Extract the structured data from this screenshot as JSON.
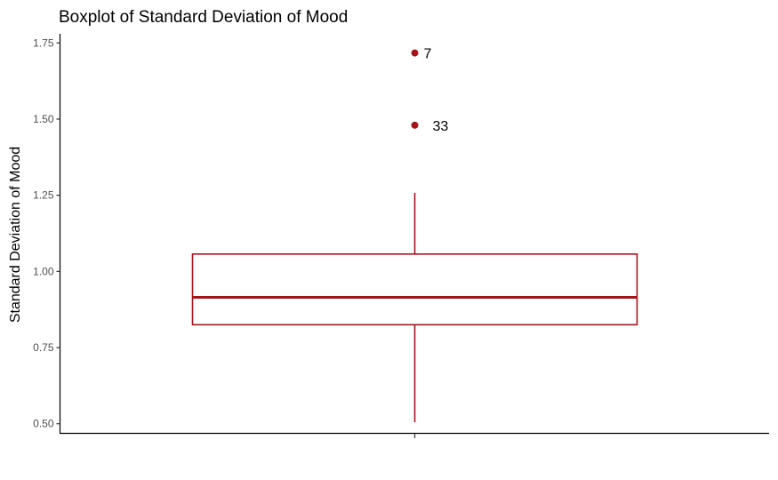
{
  "chart_data": {
    "type": "boxplot",
    "title": "Boxplot of Standard Deviation of Mood",
    "ylabel": "Standard Deviation of Mood",
    "xlabel": "",
    "ylim": [
      0.47,
      1.78
    ],
    "yticks": [
      0.5,
      0.75,
      1.0,
      1.25,
      1.5,
      1.75
    ],
    "ytick_labels": [
      "0.50",
      "0.75",
      "1.00",
      "1.25",
      "1.50",
      "1.75"
    ],
    "grid": false,
    "color": "#a3151b",
    "box": {
      "whisker_low": 0.505,
      "q1": 0.825,
      "median": 0.915,
      "q3": 1.057,
      "whisker_high": 1.258
    },
    "outliers": [
      {
        "value": 1.717,
        "label": "7"
      },
      {
        "value": 1.48,
        "label": "33"
      }
    ]
  }
}
